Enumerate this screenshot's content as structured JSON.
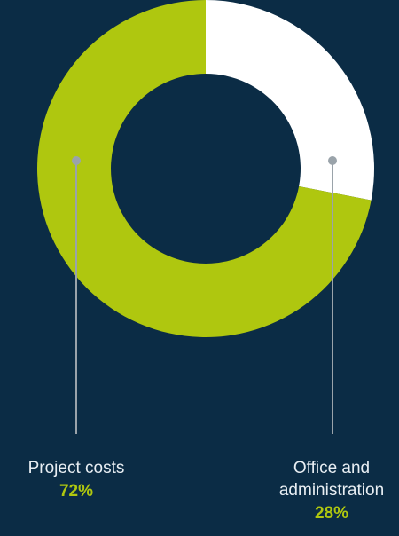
{
  "chart_data": {
    "type": "pie",
    "donut": true,
    "title": "",
    "slices": [
      {
        "label": "Office and administration",
        "value": 28,
        "display": "28%",
        "color": "#ffffff"
      },
      {
        "label": "Project costs",
        "value": 72,
        "display": "72%",
        "color": "#afc70f"
      }
    ]
  },
  "labels": {
    "project_name": "Project costs",
    "project_pct": "72%",
    "office_name_line1": "Office and",
    "office_name_line2": "administration",
    "office_pct": "28%"
  },
  "colors": {
    "background": "#0b2c45",
    "accent": "#afc70f",
    "secondary": "#ffffff",
    "leader": "#9aa3aa"
  }
}
